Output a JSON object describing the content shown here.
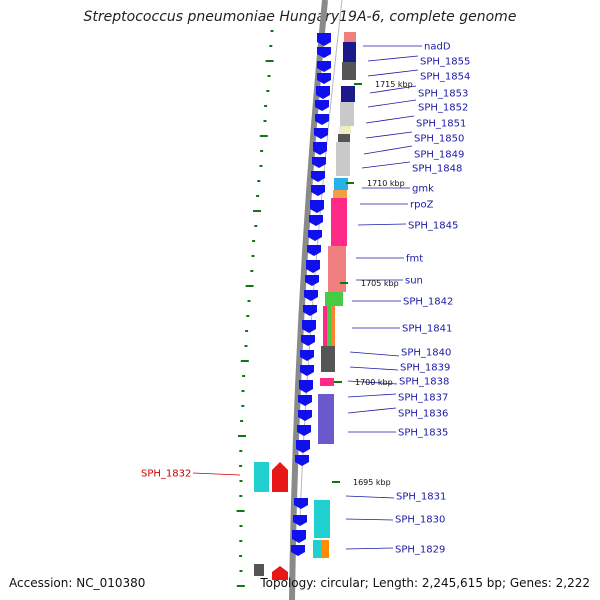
{
  "title": "Streptococcus pneumoniae Hungary19A-6, complete genome",
  "accession": "Accession: NC_010380",
  "topology": "Topology: circular; Length: 2,245,615 bp; Genes: 2,222",
  "colors": {
    "cds_blue": "#1010ee",
    "label_blue": "#1a1aa6",
    "label_red": "#cc0000",
    "tick_green": "#117711",
    "backbone": "#888888"
  },
  "kbp_markers": [
    "1715 kbp",
    "1710 kbp",
    "1705 kbp",
    "1700 kbp",
    "1695 kbp"
  ],
  "gene_labels": [
    {
      "name": "nadD",
      "color": "blue"
    },
    {
      "name": "SPH_1855",
      "color": "blue"
    },
    {
      "name": "SPH_1854",
      "color": "blue"
    },
    {
      "name": "SPH_1853",
      "color": "blue"
    },
    {
      "name": "SPH_1852",
      "color": "blue"
    },
    {
      "name": "SPH_1851",
      "color": "blue"
    },
    {
      "name": "SPH_1850",
      "color": "blue"
    },
    {
      "name": "SPH_1849",
      "color": "blue"
    },
    {
      "name": "SPH_1848",
      "color": "blue"
    },
    {
      "name": "gmk",
      "color": "blue"
    },
    {
      "name": "rpoZ",
      "color": "blue"
    },
    {
      "name": "SPH_1845",
      "color": "blue"
    },
    {
      "name": "fmt",
      "color": "blue"
    },
    {
      "name": "sun",
      "color": "blue"
    },
    {
      "name": "SPH_1842",
      "color": "blue"
    },
    {
      "name": "SPH_1841",
      "color": "blue"
    },
    {
      "name": "SPH_1840",
      "color": "blue"
    },
    {
      "name": "SPH_1839",
      "color": "blue"
    },
    {
      "name": "SPH_1838",
      "color": "blue"
    },
    {
      "name": "SPH_1837",
      "color": "blue"
    },
    {
      "name": "SPH_1836",
      "color": "blue"
    },
    {
      "name": "SPH_1835",
      "color": "blue"
    },
    {
      "name": "SPH_1832",
      "color": "red"
    },
    {
      "name": "SPH_1831",
      "color": "blue"
    },
    {
      "name": "SPH_1830",
      "color": "blue"
    },
    {
      "name": "SPH_1829",
      "color": "blue"
    }
  ]
}
